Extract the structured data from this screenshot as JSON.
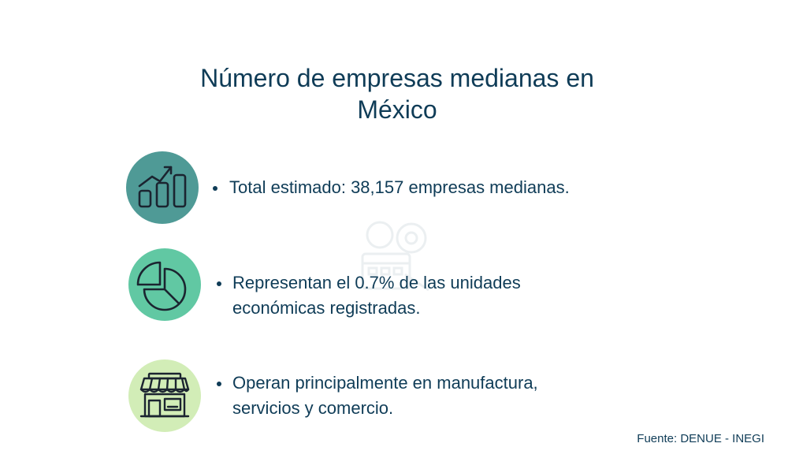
{
  "title": {
    "line1": "Número de empresas medianas en",
    "line2": "México"
  },
  "items": [
    {
      "icon": "bar-chart-growth-icon",
      "circle_color": "#4f9a96",
      "lines": [
        "Total estimado: 38,157 empresas medianas."
      ]
    },
    {
      "icon": "pie-chart-icon",
      "circle_color": "#61c8a3",
      "lines": [
        "Representan el 0.7% de las unidades",
        "económicas registradas."
      ]
    },
    {
      "icon": "storefront-icon",
      "circle_color": "#d2edb7",
      "lines": [
        "Operan principalmente en manufactura,",
        "servicios y comercio."
      ]
    }
  ],
  "source": "Fuente: DENUE - INEGI",
  "colors": {
    "text": "#0f3c57",
    "icon_stroke": "#1b2430"
  }
}
